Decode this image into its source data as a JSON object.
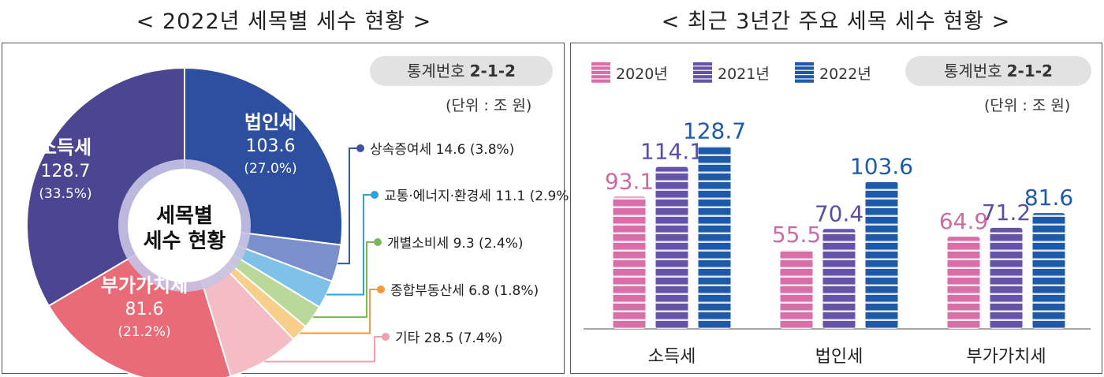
{
  "left": {
    "heading": "< 2022년 세목별 세수 현황 >",
    "badge_label": "통계번호",
    "badge_code": "2-1-2",
    "unit": "(단위 : 조 원)",
    "center_line1": "세목별",
    "center_line2": "세수 현황"
  },
  "right": {
    "heading": "< 최근 3년간 주요 세목 세수 현황 >",
    "badge_label": "통계번호",
    "badge_code": "2-1-2",
    "unit": "(단위 : 조 원)"
  },
  "chart_data": [
    {
      "type": "pie",
      "slices": [
        {
          "label": "법인세",
          "value": 103.6,
          "percent": "(27.0%)",
          "color": "#2e4ea0"
        },
        {
          "label": "상속증여세",
          "value": 14.6,
          "percent": "(3.8%)",
          "color": "#7b8fcc"
        },
        {
          "label": "교통·에너지·환경세",
          "value": 11.1,
          "percent": "(2.9%)",
          "color": "#7fc1e8"
        },
        {
          "label": "개별소비세",
          "value": 9.3,
          "percent": "(2.4%)",
          "color": "#b9d89a"
        },
        {
          "label": "종합부동산세",
          "value": 6.8,
          "percent": "(1.8%)",
          "color": "#f8cf8a"
        },
        {
          "label": "기타",
          "value": 28.5,
          "percent": "(7.4%)",
          "color": "#f4bcc4"
        },
        {
          "label": "부가가치세",
          "value": 81.6,
          "percent": "(21.2%)",
          "color": "#ea6b78"
        },
        {
          "label": "소득세",
          "value": 128.7,
          "percent": "(33.5%)",
          "color": "#4b4592"
        }
      ],
      "callout_dot_colors": [
        "#3a55a0",
        "#29a3dc",
        "#7cb85a",
        "#f29a3a",
        "#f0a0ac"
      ]
    },
    {
      "type": "bar",
      "categories": [
        "소득세",
        "법인세",
        "부가가치세"
      ],
      "series": [
        {
          "name": "2020년",
          "values": [
            93.1,
            55.5,
            64.9
          ],
          "color": "#d86fa8",
          "label_color": "#cc6aa3"
        },
        {
          "name": "2021년",
          "values": [
            114.1,
            70.4,
            71.2
          ],
          "color": "#6453a6",
          "label_color": "#5c4ea0"
        },
        {
          "name": "2022년",
          "values": [
            128.7,
            103.6,
            81.6
          ],
          "color": "#1f5aa8",
          "label_color": "#1f5aa8"
        }
      ],
      "ylim": [
        0,
        140
      ]
    }
  ]
}
